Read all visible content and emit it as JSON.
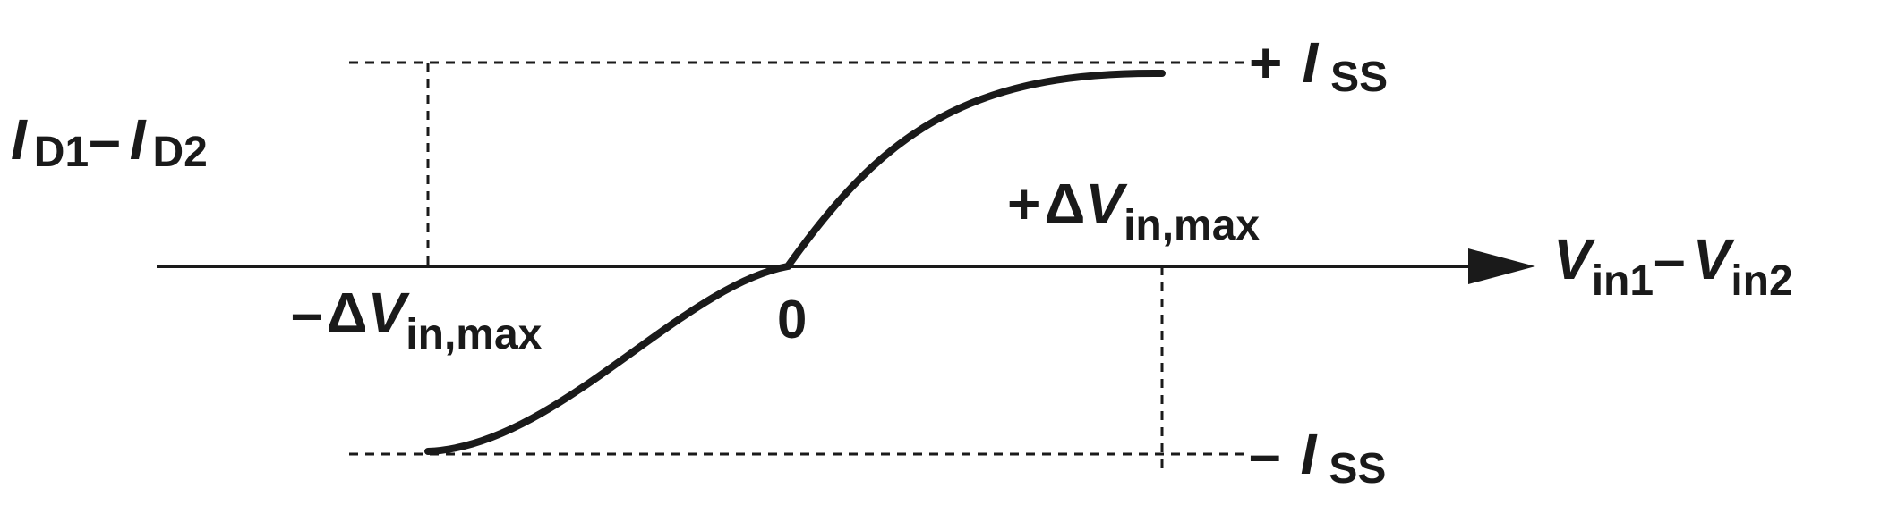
{
  "y_axis_label": {
    "var1": "I",
    "sub1": "D1",
    "minus": "–",
    "var2": "I",
    "sub2": "D2"
  },
  "x_axis_label": {
    "var1": "V",
    "sub1": "in1",
    "minus": "–",
    "var2": "V",
    "sub2": "in2"
  },
  "top_level_label": {
    "sign": "+",
    "var": "I",
    "sub": "SS"
  },
  "bottom_level_label": {
    "sign": "–",
    "var": "I",
    "sub": "SS"
  },
  "pos_limit_label": {
    "sign": "+",
    "delta": "Δ",
    "var": "V",
    "sub": "in,max"
  },
  "neg_limit_label": {
    "sign": "–",
    "delta": "Δ",
    "var": "V",
    "sub": "in,max"
  },
  "origin_label": "0",
  "colors": {
    "ink": "#1a1a1a",
    "background": "#ffffff"
  }
}
